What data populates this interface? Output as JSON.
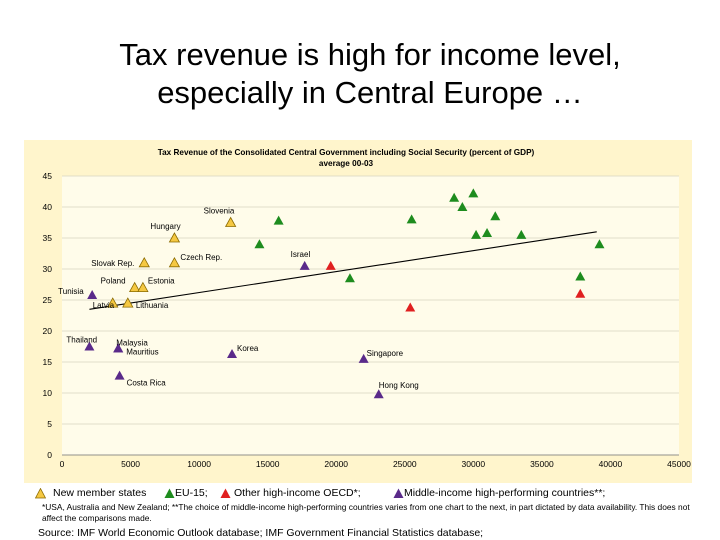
{
  "slide": {
    "title_line1": "Tax revenue is high for income level,",
    "title_line2": "especially in Central Europe …",
    "footnote": "*USA, Australia and New Zealand; **The choice of middle-income high-performing countries varies from one chart to the next, in part dictated by data availability. This does not affect the comparisons made.",
    "source": "Source: IMF World Economic Outlook database; IMF Government Financial Statistics database;"
  },
  "colors": {
    "panel_bg": "#fff5cc",
    "plot_bg": "#fffcea",
    "new_member": "#f5c842",
    "eu15": "#1e8c1e",
    "high_income": "#e02020",
    "middle_income": "#5a2a8a",
    "trend": "#000000"
  },
  "chart_data": {
    "type": "scatter",
    "title": "Tax Revenue of the Consolidated Central Government including Social Security (percent of GDP)",
    "subtitle": "average 00-03",
    "xlabel": "",
    "ylabel": "",
    "xlim": [
      0,
      45000
    ],
    "ylim": [
      0,
      45
    ],
    "x_ticks": [
      "0",
      "5000",
      "10000",
      "15000",
      "20000",
      "25000",
      "30000",
      "35000",
      "40000",
      "45000"
    ],
    "y_ticks": [
      "0",
      "5",
      "10",
      "15",
      "20",
      "25",
      "30",
      "35",
      "40",
      "45"
    ],
    "grid": true,
    "legend_position": "bottom",
    "series": [
      {
        "name": "New member states",
        "color_key": "new_member",
        "points": [
          {
            "x": 12300,
            "y": 37.5,
            "label": "Slovenia"
          },
          {
            "x": 8200,
            "y": 35.0,
            "label": "Hungary"
          },
          {
            "x": 6000,
            "y": 31.0,
            "label": "Slovak Rep."
          },
          {
            "x": 8200,
            "y": 31.0,
            "label": "Czech Rep."
          },
          {
            "x": 5300,
            "y": 27.0,
            "label": "Poland"
          },
          {
            "x": 5900,
            "y": 27.0,
            "label": "Estonia"
          },
          {
            "x": 3700,
            "y": 24.5,
            "label": "Latvia"
          },
          {
            "x": 4800,
            "y": 24.5,
            "label": "Lithuania"
          }
        ]
      },
      {
        "name": "EU-15",
        "points": [
          {
            "x": 15800,
            "y": 37.8,
            "label": ""
          },
          {
            "x": 14400,
            "y": 34.0,
            "label": ""
          },
          {
            "x": 25500,
            "y": 38.0,
            "label": ""
          },
          {
            "x": 28600,
            "y": 41.5,
            "label": ""
          },
          {
            "x": 29200,
            "y": 40.0,
            "label": ""
          },
          {
            "x": 30000,
            "y": 42.2,
            "label": ""
          },
          {
            "x": 30200,
            "y": 35.5,
            "label": ""
          },
          {
            "x": 31000,
            "y": 35.8,
            "label": ""
          },
          {
            "x": 31600,
            "y": 38.5,
            "label": ""
          },
          {
            "x": 33500,
            "y": 35.5,
            "label": ""
          },
          {
            "x": 37800,
            "y": 28.8,
            "label": ""
          },
          {
            "x": 39200,
            "y": 34.0,
            "label": ""
          },
          {
            "x": 21000,
            "y": 28.5,
            "label": ""
          }
        ]
      },
      {
        "name": "Other high-income OECD*",
        "points": [
          {
            "x": 19600,
            "y": 30.5,
            "label": ""
          },
          {
            "x": 25400,
            "y": 23.8,
            "label": ""
          },
          {
            "x": 37800,
            "y": 26.0,
            "label": ""
          }
        ]
      },
      {
        "name": "Middle-income high-performing countries**",
        "points": [
          {
            "x": 2200,
            "y": 25.8,
            "label": "Tunisia"
          },
          {
            "x": 17700,
            "y": 30.5,
            "label": "Israel"
          },
          {
            "x": 2000,
            "y": 17.5,
            "label": "Thailand"
          },
          {
            "x": 4100,
            "y": 17.2,
            "label": "Malaysia"
          },
          {
            "x": 4100,
            "y": 17.2,
            "label": "Mauritius"
          },
          {
            "x": 12400,
            "y": 16.3,
            "label": "Korea"
          },
          {
            "x": 22000,
            "y": 15.5,
            "label": "Singapore"
          },
          {
            "x": 4200,
            "y": 12.8,
            "label": "Costa Rica"
          },
          {
            "x": 23100,
            "y": 9.8,
            "label": "Hong Kong"
          }
        ]
      }
    ],
    "trendline": {
      "x": [
        2000,
        39000
      ],
      "y": [
        23.5,
        36.0
      ]
    }
  }
}
